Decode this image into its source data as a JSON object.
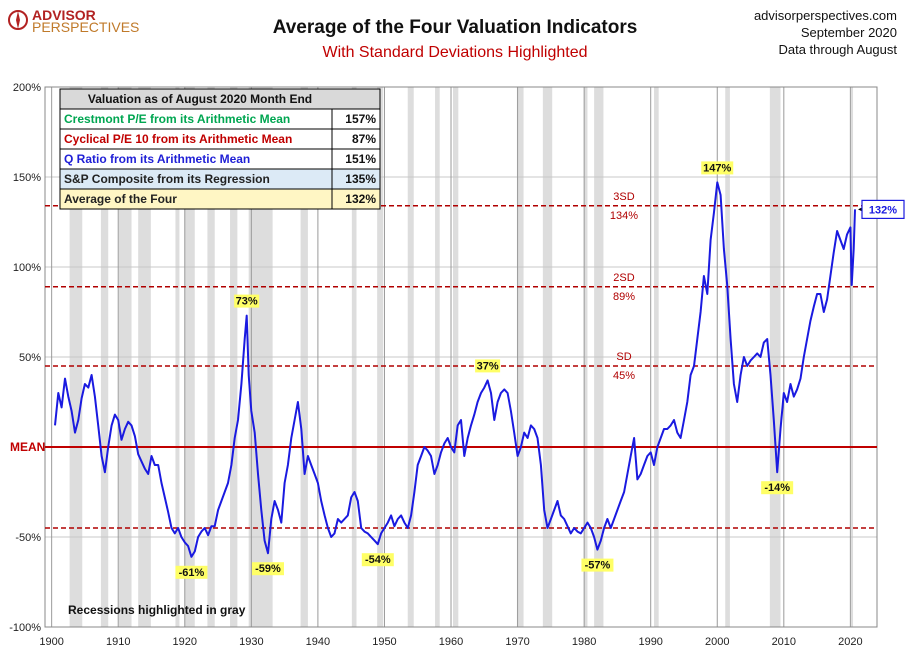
{
  "header": {
    "logo_line1": "ADVISOR",
    "logo_line2": "PERSPECTIVES",
    "title": "Average of the Four Valuation Indicators",
    "subtitle": "With Standard Deviations Highlighted",
    "site": "advisorperspectives.com",
    "date": "September 2020",
    "data_note": "Data through August"
  },
  "table": {
    "header": "Valuation as of August 2020  Month End",
    "rows": [
      {
        "label": "Crestmont P/E from its Arithmetic Mean",
        "value": "157%",
        "color": "#00a651",
        "bg": "#ffffff"
      },
      {
        "label": "Cyclical P/E 10 from its Arithmetic Mean",
        "value": "87%",
        "color": "#c00000",
        "bg": "#ffffff"
      },
      {
        "label": "Q Ratio from its Arithmetic Mean",
        "value": "151%",
        "color": "#1f1fd6",
        "bg": "#ffffff"
      },
      {
        "label": "S&P Composite from its Regression",
        "value": "135%",
        "color": "#222222",
        "bg": "#dceaf6"
      },
      {
        "label": "Average of the Four",
        "value": "132%",
        "color": "#222222",
        "bg": "#fff6c4"
      }
    ]
  },
  "recession_note": "Recessions highlighted in gray",
  "mean_label": "MEAN",
  "chart_data": {
    "type": "line",
    "xlim": [
      1899,
      2024
    ],
    "ylim": [
      -100,
      200
    ],
    "x_ticks": [
      1900,
      1910,
      1920,
      1930,
      1940,
      1950,
      1960,
      1970,
      1980,
      1990,
      2000,
      2010,
      2020
    ],
    "x_tick_labels": [
      "1900",
      "1910",
      "1920",
      "1930",
      "1940",
      "1950",
      "1960",
      "1970",
      "1980",
      "1990",
      "2000",
      "2010",
      "2020"
    ],
    "y_ticks": [
      -100,
      -50,
      0,
      50,
      100,
      150,
      200
    ],
    "y_tick_labels": [
      "-100%",
      "-50%",
      "",
      "50%",
      "100%",
      "150%",
      "200%"
    ],
    "grid": true,
    "reference_lines": [
      {
        "y": 134,
        "label1": "3SD",
        "label2": "134%"
      },
      {
        "y": 89,
        "label1": "2SD",
        "label2": "89%"
      },
      {
        "y": 45,
        "label1": "SD",
        "label2": "45%"
      },
      {
        "y": -45
      }
    ],
    "recessions": [
      [
        1902.7,
        1904.6
      ],
      [
        1907.4,
        1908.5
      ],
      [
        1910.1,
        1912.0
      ],
      [
        1913.0,
        1914.9
      ],
      [
        1918.6,
        1919.2
      ],
      [
        1920.0,
        1921.5
      ],
      [
        1923.4,
        1924.5
      ],
      [
        1926.8,
        1927.9
      ],
      [
        1929.6,
        1933.2
      ],
      [
        1937.4,
        1938.5
      ],
      [
        1945.1,
        1945.8
      ],
      [
        1948.9,
        1949.8
      ],
      [
        1953.5,
        1954.4
      ],
      [
        1957.6,
        1958.3
      ],
      [
        1960.3,
        1961.1
      ],
      [
        1969.9,
        1970.9
      ],
      [
        1973.8,
        1975.2
      ],
      [
        1980.0,
        1980.5
      ],
      [
        1981.5,
        1982.9
      ],
      [
        1990.5,
        1991.2
      ],
      [
        2001.2,
        2001.9
      ],
      [
        2007.9,
        2009.5
      ],
      [
        2020.1,
        2020.4
      ]
    ],
    "series": [
      {
        "color": "#1a1ae0",
        "points": [
          [
            1900.5,
            12
          ],
          [
            1901,
            30
          ],
          [
            1901.5,
            22
          ],
          [
            1902,
            38
          ],
          [
            1902.5,
            28
          ],
          [
            1903,
            20
          ],
          [
            1903.5,
            8
          ],
          [
            1904,
            15
          ],
          [
            1904.5,
            27
          ],
          [
            1905,
            35
          ],
          [
            1905.5,
            33
          ],
          [
            1906,
            40
          ],
          [
            1906.5,
            28
          ],
          [
            1907,
            12
          ],
          [
            1907.5,
            -5
          ],
          [
            1908,
            -14
          ],
          [
            1908.5,
            0
          ],
          [
            1909,
            12
          ],
          [
            1909.5,
            18
          ],
          [
            1910,
            15
          ],
          [
            1910.5,
            4
          ],
          [
            1911,
            10
          ],
          [
            1911.5,
            14
          ],
          [
            1912,
            12
          ],
          [
            1912.5,
            6
          ],
          [
            1913,
            -4
          ],
          [
            1913.5,
            -8
          ],
          [
            1914,
            -12
          ],
          [
            1914.5,
            -15
          ],
          [
            1915,
            -5
          ],
          [
            1915.5,
            -10
          ],
          [
            1916,
            -10
          ],
          [
            1916.5,
            -20
          ],
          [
            1917,
            -28
          ],
          [
            1917.5,
            -36
          ],
          [
            1918,
            -45
          ],
          [
            1918.5,
            -48
          ],
          [
            1919,
            -45
          ],
          [
            1919.5,
            -50
          ],
          [
            1920,
            -53
          ],
          [
            1920.5,
            -55
          ],
          [
            1921,
            -61
          ],
          [
            1921.5,
            -58
          ],
          [
            1922,
            -50
          ],
          [
            1922.5,
            -47
          ],
          [
            1923,
            -45
          ],
          [
            1923.5,
            -49
          ],
          [
            1924,
            -44
          ],
          [
            1924.5,
            -44
          ],
          [
            1925,
            -35
          ],
          [
            1925.5,
            -30
          ],
          [
            1926,
            -25
          ],
          [
            1926.5,
            -20
          ],
          [
            1927,
            -10
          ],
          [
            1927.5,
            5
          ],
          [
            1928,
            15
          ],
          [
            1928.5,
            35
          ],
          [
            1929,
            60
          ],
          [
            1929.3,
            73
          ],
          [
            1929.6,
            40
          ],
          [
            1930,
            20
          ],
          [
            1930.5,
            8
          ],
          [
            1931,
            -15
          ],
          [
            1931.5,
            -35
          ],
          [
            1932,
            -52
          ],
          [
            1932.5,
            -59
          ],
          [
            1933,
            -40
          ],
          [
            1933.5,
            -30
          ],
          [
            1934,
            -35
          ],
          [
            1934.5,
            -42
          ],
          [
            1935,
            -20
          ],
          [
            1935.5,
            -10
          ],
          [
            1936,
            5
          ],
          [
            1936.5,
            15
          ],
          [
            1937,
            25
          ],
          [
            1937.5,
            10
          ],
          [
            1938,
            -15
          ],
          [
            1938.5,
            -5
          ],
          [
            1939,
            -10
          ],
          [
            1939.5,
            -15
          ],
          [
            1940,
            -20
          ],
          [
            1940.5,
            -30
          ],
          [
            1941,
            -38
          ],
          [
            1941.5,
            -45
          ],
          [
            1942,
            -50
          ],
          [
            1942.5,
            -48
          ],
          [
            1943,
            -40
          ],
          [
            1943.5,
            -42
          ],
          [
            1944,
            -40
          ],
          [
            1944.5,
            -38
          ],
          [
            1945,
            -28
          ],
          [
            1945.5,
            -25
          ],
          [
            1946,
            -30
          ],
          [
            1946.5,
            -45
          ],
          [
            1947,
            -47
          ],
          [
            1947.5,
            -48
          ],
          [
            1948,
            -50
          ],
          [
            1948.5,
            -52
          ],
          [
            1949,
            -54
          ],
          [
            1949.5,
            -48
          ],
          [
            1950,
            -45
          ],
          [
            1950.5,
            -42
          ],
          [
            1951,
            -38
          ],
          [
            1951.5,
            -44
          ],
          [
            1952,
            -40
          ],
          [
            1952.5,
            -38
          ],
          [
            1953,
            -42
          ],
          [
            1953.5,
            -45
          ],
          [
            1954,
            -38
          ],
          [
            1954.5,
            -25
          ],
          [
            1955,
            -10
          ],
          [
            1955.5,
            -5
          ],
          [
            1956,
            0
          ],
          [
            1956.5,
            -2
          ],
          [
            1957,
            -5
          ],
          [
            1957.5,
            -15
          ],
          [
            1958,
            -10
          ],
          [
            1958.5,
            -3
          ],
          [
            1959,
            2
          ],
          [
            1959.5,
            5
          ],
          [
            1960,
            0
          ],
          [
            1960.5,
            -3
          ],
          [
            1961,
            12
          ],
          [
            1961.5,
            15
          ],
          [
            1962,
            -5
          ],
          [
            1962.5,
            5
          ],
          [
            1963,
            12
          ],
          [
            1963.5,
            18
          ],
          [
            1964,
            25
          ],
          [
            1964.5,
            30
          ],
          [
            1965,
            33
          ],
          [
            1965.5,
            37
          ],
          [
            1966,
            30
          ],
          [
            1966.5,
            15
          ],
          [
            1967,
            25
          ],
          [
            1967.5,
            30
          ],
          [
            1968,
            32
          ],
          [
            1968.5,
            30
          ],
          [
            1969,
            20
          ],
          [
            1969.5,
            8
          ],
          [
            1970,
            -5
          ],
          [
            1970.5,
            0
          ],
          [
            1971,
            8
          ],
          [
            1971.5,
            5
          ],
          [
            1972,
            12
          ],
          [
            1972.5,
            10
          ],
          [
            1973,
            5
          ],
          [
            1973.5,
            -10
          ],
          [
            1974,
            -35
          ],
          [
            1974.5,
            -45
          ],
          [
            1975,
            -40
          ],
          [
            1975.5,
            -35
          ],
          [
            1976,
            -30
          ],
          [
            1976.5,
            -38
          ],
          [
            1977,
            -40
          ],
          [
            1977.5,
            -44
          ],
          [
            1978,
            -48
          ],
          [
            1978.5,
            -45
          ],
          [
            1979,
            -47
          ],
          [
            1979.5,
            -48
          ],
          [
            1980,
            -45
          ],
          [
            1980.5,
            -42
          ],
          [
            1981,
            -45
          ],
          [
            1981.5,
            -50
          ],
          [
            1982,
            -57
          ],
          [
            1982.5,
            -52
          ],
          [
            1983,
            -45
          ],
          [
            1983.5,
            -40
          ],
          [
            1984,
            -45
          ],
          [
            1984.5,
            -40
          ],
          [
            1985,
            -35
          ],
          [
            1985.5,
            -30
          ],
          [
            1986,
            -25
          ],
          [
            1986.5,
            -15
          ],
          [
            1987,
            -5
          ],
          [
            1987.5,
            5
          ],
          [
            1988,
            -18
          ],
          [
            1988.5,
            -15
          ],
          [
            1989,
            -10
          ],
          [
            1989.5,
            -5
          ],
          [
            1990,
            -3
          ],
          [
            1990.5,
            -10
          ],
          [
            1991,
            0
          ],
          [
            1991.5,
            5
          ],
          [
            1992,
            10
          ],
          [
            1992.5,
            10
          ],
          [
            1993,
            12
          ],
          [
            1993.5,
            15
          ],
          [
            1994,
            8
          ],
          [
            1994.5,
            5
          ],
          [
            1995,
            15
          ],
          [
            1995.5,
            25
          ],
          [
            1996,
            40
          ],
          [
            1996.5,
            45
          ],
          [
            1997,
            60
          ],
          [
            1997.5,
            75
          ],
          [
            1998,
            95
          ],
          [
            1998.5,
            85
          ],
          [
            1999,
            115
          ],
          [
            1999.5,
            130
          ],
          [
            2000,
            147
          ],
          [
            2000.5,
            140
          ],
          [
            2001,
            110
          ],
          [
            2001.5,
            90
          ],
          [
            2002,
            60
          ],
          [
            2002.5,
            35
          ],
          [
            2003,
            25
          ],
          [
            2003.5,
            40
          ],
          [
            2004,
            50
          ],
          [
            2004.5,
            45
          ],
          [
            2005,
            48
          ],
          [
            2005.5,
            50
          ],
          [
            2006,
            52
          ],
          [
            2006.5,
            50
          ],
          [
            2007,
            58
          ],
          [
            2007.5,
            60
          ],
          [
            2008,
            40
          ],
          [
            2008.5,
            15
          ],
          [
            2009,
            -14
          ],
          [
            2009.5,
            10
          ],
          [
            2010,
            30
          ],
          [
            2010.5,
            25
          ],
          [
            2011,
            35
          ],
          [
            2011.5,
            28
          ],
          [
            2012,
            32
          ],
          [
            2012.5,
            38
          ],
          [
            2013,
            50
          ],
          [
            2013.5,
            60
          ],
          [
            2014,
            70
          ],
          [
            2014.5,
            78
          ],
          [
            2015,
            85
          ],
          [
            2015.5,
            85
          ],
          [
            2016,
            75
          ],
          [
            2016.5,
            82
          ],
          [
            2017,
            95
          ],
          [
            2017.5,
            108
          ],
          [
            2018,
            120
          ],
          [
            2018.5,
            115
          ],
          [
            2019,
            110
          ],
          [
            2019.5,
            118
          ],
          [
            2020,
            122
          ],
          [
            2020.2,
            90
          ],
          [
            2020.5,
            110
          ],
          [
            2020.7,
            132
          ]
        ]
      }
    ],
    "annotations": [
      {
        "x": 1929.3,
        "y": 73,
        "text": "73%",
        "pos": "above"
      },
      {
        "x": 1921,
        "y": -61,
        "text": "-61%",
        "pos": "below"
      },
      {
        "x": 1932.5,
        "y": -59,
        "text": "-59%",
        "pos": "below"
      },
      {
        "x": 1949,
        "y": -54,
        "text": "-54%",
        "pos": "below"
      },
      {
        "x": 1965.5,
        "y": 37,
        "text": "37%",
        "pos": "above"
      },
      {
        "x": 1982,
        "y": -57,
        "text": "-57%",
        "pos": "below"
      },
      {
        "x": 2000,
        "y": 147,
        "text": "147%",
        "pos": "above"
      },
      {
        "x": 2009,
        "y": -14,
        "text": "-14%",
        "pos": "below"
      }
    ],
    "current_label": "132%"
  }
}
